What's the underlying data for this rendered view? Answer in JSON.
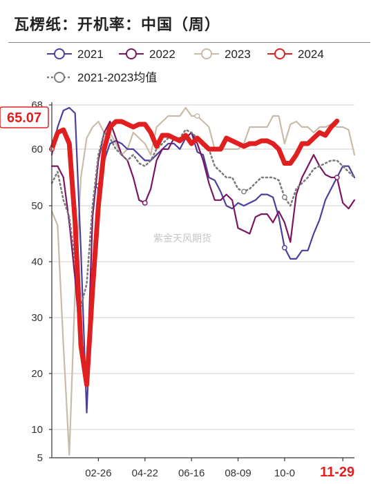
{
  "title": "瓦楞纸：开机率：中国（周）",
  "watermark": "紫金天风期货",
  "callout": {
    "value": "65.07",
    "color": "#e02020"
  },
  "chart_data": {
    "type": "line",
    "ylim": [
      5,
      68
    ],
    "y_ticks": [
      5,
      10,
      20,
      30,
      40,
      50,
      60,
      68
    ],
    "x_range": [
      1,
      53
    ],
    "x_ticks": [
      {
        "label": "02-26",
        "week": 9,
        "highlight": false
      },
      {
        "label": "04-22",
        "week": 17,
        "highlight": false
      },
      {
        "label": "06-16",
        "week": 25,
        "highlight": false
      },
      {
        "label": "08-09",
        "week": 33,
        "highlight": false
      },
      {
        "label": "10-0",
        "week": 41,
        "highlight": false
      },
      {
        "label": "11-29",
        "week": 51,
        "highlight": true
      }
    ],
    "grid": true,
    "legend_position": "top",
    "series": [
      {
        "name": "2021",
        "color": "#4a3f9b",
        "width": 2.2,
        "dash": "",
        "marker_weeks": [
          9,
          41
        ],
        "values": [
          [
            1,
            59
          ],
          [
            2,
            64
          ],
          [
            3,
            67
          ],
          [
            4,
            67.5
          ],
          [
            5,
            66.5
          ],
          [
            6,
            42
          ],
          [
            7,
            13
          ],
          [
            8,
            38
          ],
          [
            9,
            53.5
          ],
          [
            10,
            58
          ],
          [
            11,
            61
          ],
          [
            12,
            61.5
          ],
          [
            13,
            61
          ],
          [
            14,
            60
          ],
          [
            15,
            60
          ],
          [
            16,
            59
          ],
          [
            17,
            58
          ],
          [
            18,
            58
          ],
          [
            19,
            59
          ],
          [
            20,
            60
          ],
          [
            21,
            61
          ],
          [
            22,
            61
          ],
          [
            23,
            60
          ],
          [
            24,
            62
          ],
          [
            25,
            63
          ],
          [
            26,
            59.5
          ],
          [
            27,
            59
          ],
          [
            28,
            55
          ],
          [
            29,
            54.5
          ],
          [
            30,
            52.5
          ],
          [
            31,
            50
          ],
          [
            32,
            49.5
          ],
          [
            33,
            50.5
          ],
          [
            34,
            50
          ],
          [
            35,
            50.5
          ],
          [
            36,
            51
          ],
          [
            37,
            52
          ],
          [
            38,
            52
          ],
          [
            39,
            51.5
          ],
          [
            40,
            48
          ],
          [
            41,
            42.5
          ],
          [
            42,
            40.5
          ],
          [
            43,
            40.5
          ],
          [
            44,
            42
          ],
          [
            45,
            42
          ],
          [
            46,
            45
          ],
          [
            47,
            47.5
          ],
          [
            48,
            51
          ],
          [
            49,
            53
          ],
          [
            50,
            55
          ],
          [
            51,
            57
          ],
          [
            52,
            57
          ],
          [
            53,
            55
          ]
        ]
      },
      {
        "name": "2022",
        "color": "#7a1560",
        "width": 2.2,
        "dash": "",
        "marker_weeks": [
          17,
          50
        ],
        "values": [
          [
            1,
            57
          ],
          [
            2,
            57
          ],
          [
            3,
            55
          ],
          [
            4,
            47
          ],
          [
            5,
            37
          ],
          [
            6,
            24
          ],
          [
            7,
            18
          ],
          [
            8,
            48
          ],
          [
            9,
            58
          ],
          [
            10,
            63
          ],
          [
            11,
            65
          ],
          [
            12,
            62
          ],
          [
            13,
            59
          ],
          [
            14,
            58
          ],
          [
            15,
            55
          ],
          [
            16,
            51
          ],
          [
            17,
            50.5
          ],
          [
            18,
            53
          ],
          [
            19,
            58
          ],
          [
            20,
            60
          ],
          [
            21,
            60
          ],
          [
            22,
            62
          ],
          [
            23,
            62
          ],
          [
            24,
            62
          ],
          [
            25,
            63
          ],
          [
            26,
            61
          ],
          [
            27,
            58
          ],
          [
            28,
            54
          ],
          [
            29,
            51
          ],
          [
            30,
            51
          ],
          [
            31,
            52
          ],
          [
            32,
            51
          ],
          [
            33,
            46
          ],
          [
            34,
            45.5
          ],
          [
            35,
            45
          ],
          [
            36,
            48
          ],
          [
            37,
            48.5
          ],
          [
            38,
            48.5
          ],
          [
            39,
            47
          ],
          [
            40,
            49
          ],
          [
            41,
            47
          ],
          [
            42,
            43.5
          ],
          [
            43,
            52
          ],
          [
            44,
            55
          ],
          [
            45,
            57
          ],
          [
            46,
            59
          ],
          [
            47,
            57
          ],
          [
            48,
            55.5
          ],
          [
            49,
            55
          ],
          [
            50,
            55
          ],
          [
            51,
            50.5
          ],
          [
            52,
            49.5
          ],
          [
            53,
            51
          ]
        ]
      },
      {
        "name": "2023",
        "color": "#c8bba8",
        "width": 2.2,
        "dash": "",
        "marker_weeks": [
          26
        ],
        "values": [
          [
            1,
            49
          ],
          [
            2,
            46.5
          ],
          [
            3,
            25
          ],
          [
            4,
            5.5
          ],
          [
            5,
            35
          ],
          [
            6,
            55
          ],
          [
            7,
            62
          ],
          [
            8,
            64
          ],
          [
            9,
            65
          ],
          [
            10,
            63
          ],
          [
            11,
            63
          ],
          [
            12,
            61
          ],
          [
            13,
            59
          ],
          [
            14,
            60
          ],
          [
            15,
            63
          ],
          [
            16,
            62
          ],
          [
            17,
            61
          ],
          [
            18,
            59
          ],
          [
            19,
            64
          ],
          [
            20,
            65
          ],
          [
            21,
            66
          ],
          [
            22,
            66
          ],
          [
            23,
            66
          ],
          [
            24,
            67.5
          ],
          [
            25,
            66
          ],
          [
            26,
            66
          ],
          [
            27,
            65
          ],
          [
            28,
            64
          ],
          [
            29,
            60
          ],
          [
            30,
            60
          ],
          [
            31,
            60
          ],
          [
            32,
            60
          ],
          [
            33,
            60
          ],
          [
            34,
            61
          ],
          [
            35,
            64
          ],
          [
            36,
            64
          ],
          [
            37,
            64
          ],
          [
            38,
            64
          ],
          [
            39,
            66
          ],
          [
            40,
            66
          ],
          [
            41,
            61
          ],
          [
            42,
            64.5
          ],
          [
            43,
            65
          ],
          [
            44,
            64
          ],
          [
            45,
            64
          ],
          [
            46,
            63
          ],
          [
            47,
            64
          ],
          [
            48,
            64
          ],
          [
            49,
            64.5
          ],
          [
            50,
            64
          ],
          [
            51,
            64
          ],
          [
            52,
            63.5
          ],
          [
            53,
            59
          ]
        ]
      },
      {
        "name": "2024",
        "color": "#e02020",
        "width": 7,
        "dash": "",
        "marker_weeks": [
          1
        ],
        "values": [
          [
            1,
            60
          ],
          [
            2,
            63
          ],
          [
            3,
            63.5
          ],
          [
            4,
            61
          ],
          [
            5,
            47
          ],
          [
            6,
            25
          ],
          [
            7,
            18
          ],
          [
            8,
            35
          ],
          [
            9,
            50
          ],
          [
            10,
            60
          ],
          [
            11,
            64
          ],
          [
            12,
            65
          ],
          [
            13,
            65
          ],
          [
            14,
            64.5
          ],
          [
            15,
            64
          ],
          [
            16,
            64.5
          ],
          [
            17,
            64.5
          ],
          [
            18,
            63
          ],
          [
            19,
            60.5
          ],
          [
            20,
            62.5
          ],
          [
            21,
            62.5
          ],
          [
            22,
            62
          ],
          [
            23,
            61.5
          ],
          [
            24,
            62.5
          ],
          [
            25,
            61
          ],
          [
            26,
            62
          ],
          [
            27,
            61
          ],
          [
            28,
            60
          ],
          [
            29,
            60
          ],
          [
            30,
            60
          ],
          [
            31,
            62
          ],
          [
            32,
            61.5
          ],
          [
            33,
            61
          ],
          [
            34,
            60.5
          ],
          [
            35,
            61
          ],
          [
            36,
            61
          ],
          [
            37,
            61.5
          ],
          [
            38,
            61.5
          ],
          [
            39,
            61
          ],
          [
            40,
            60
          ],
          [
            41,
            57.5
          ],
          [
            42,
            57.5
          ],
          [
            43,
            59
          ],
          [
            44,
            61
          ],
          [
            45,
            61
          ],
          [
            46,
            62
          ],
          [
            47,
            63
          ],
          [
            48,
            62.5
          ],
          [
            49,
            64
          ],
          [
            50,
            65.07
          ]
        ]
      },
      {
        "name": "2021-2023均值",
        "color": "#7a7a7a",
        "width": 2.6,
        "dash": "2,4",
        "marker_weeks": [
          34,
          41
        ],
        "values": [
          [
            1,
            54
          ],
          [
            2,
            56
          ],
          [
            3,
            51
          ],
          [
            4,
            48
          ],
          [
            5,
            40
          ],
          [
            6,
            32
          ],
          [
            7,
            36
          ],
          [
            8,
            50
          ],
          [
            9,
            59
          ],
          [
            10,
            63
          ],
          [
            11,
            62
          ],
          [
            12,
            60
          ],
          [
            13,
            59
          ],
          [
            14,
            58
          ],
          [
            15,
            59
          ],
          [
            16,
            57.5
          ],
          [
            17,
            57
          ],
          [
            18,
            58
          ],
          [
            19,
            60
          ],
          [
            20,
            61
          ],
          [
            21,
            62
          ],
          [
            22,
            62
          ],
          [
            23,
            62
          ],
          [
            24,
            63.5
          ],
          [
            25,
            63
          ],
          [
            26,
            62
          ],
          [
            27,
            60.5
          ],
          [
            28,
            60
          ],
          [
            29,
            57
          ],
          [
            30,
            56
          ],
          [
            31,
            55
          ],
          [
            32,
            55
          ],
          [
            33,
            53
          ],
          [
            34,
            52.5
          ],
          [
            35,
            53
          ],
          [
            36,
            54
          ],
          [
            37,
            55
          ],
          [
            38,
            55
          ],
          [
            39,
            55
          ],
          [
            40,
            54.5
          ],
          [
            41,
            51.5
          ],
          [
            42,
            50
          ],
          [
            43,
            53
          ],
          [
            44,
            54
          ],
          [
            45,
            55
          ],
          [
            46,
            56.5
          ],
          [
            47,
            57
          ],
          [
            48,
            57.5
          ],
          [
            49,
            58
          ],
          [
            50,
            58
          ],
          [
            51,
            57
          ],
          [
            52,
            56
          ],
          [
            53,
            55
          ]
        ]
      }
    ]
  }
}
